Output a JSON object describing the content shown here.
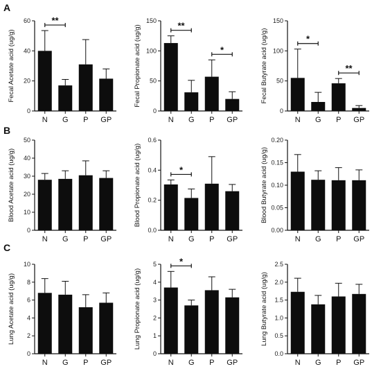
{
  "panels": [
    "A",
    "B",
    "C"
  ],
  "chart_data": [
    {
      "type": "bar",
      "panel": "A",
      "ylabel": "Fecal Acetate acid (ug/g)",
      "categories": [
        "N",
        "G",
        "P",
        "GP"
      ],
      "values": [
        40,
        17,
        31,
        21.5
      ],
      "errors": [
        13.5,
        4,
        16.5,
        6.5
      ],
      "ylim": [
        0,
        60
      ],
      "yticks": [
        "0",
        "20",
        "40",
        "60"
      ],
      "significance": [
        {
          "from": "N",
          "to": "G",
          "label": "**"
        }
      ]
    },
    {
      "type": "bar",
      "panel": "A",
      "ylabel": "Fecal Propionate acid (ug/g)",
      "categories": [
        "N",
        "G",
        "P",
        "GP"
      ],
      "values": [
        113,
        31,
        57,
        20
      ],
      "errors": [
        12,
        20,
        28,
        12
      ],
      "ylim": [
        0,
        150
      ],
      "yticks": [
        "0",
        "50",
        "100",
        "150"
      ],
      "significance": [
        {
          "from": "N",
          "to": "G",
          "label": "**"
        },
        {
          "from": "P",
          "to": "GP",
          "label": "*"
        }
      ]
    },
    {
      "type": "bar",
      "panel": "A",
      "ylabel": "Fecal Butyrate acid (ug/g)",
      "categories": [
        "N",
        "G",
        "P",
        "GP"
      ],
      "values": [
        55,
        15,
        46,
        5
      ],
      "errors": [
        48,
        16,
        8,
        4
      ],
      "ylim": [
        0,
        150
      ],
      "yticks": [
        "0",
        "50",
        "100",
        "150"
      ],
      "significance": [
        {
          "from": "N",
          "to": "G",
          "label": "*"
        },
        {
          "from": "P",
          "to": "GP",
          "label": "**"
        }
      ]
    },
    {
      "type": "bar",
      "panel": "B",
      "ylabel": "Blood Acetate acid (ug/g)",
      "categories": [
        "N",
        "G",
        "P",
        "GP"
      ],
      "values": [
        28,
        28.5,
        30.5,
        29
      ],
      "errors": [
        3.5,
        4.5,
        8,
        4
      ],
      "ylim": [
        0,
        50
      ],
      "yticks": [
        "0",
        "10",
        "20",
        "30",
        "40",
        "50"
      ],
      "significance": []
    },
    {
      "type": "bar",
      "panel": "B",
      "ylabel": "Blood Propionate acid (ug/g)",
      "categories": [
        "N",
        "G",
        "P",
        "GP"
      ],
      "values": [
        0.305,
        0.215,
        0.31,
        0.26
      ],
      "errors": [
        0.03,
        0.06,
        0.18,
        0.045
      ],
      "ylim": [
        0,
        0.6
      ],
      "yticks": [
        "0.0",
        "0.2",
        "0.4",
        "0.6"
      ],
      "significance": [
        {
          "from": "N",
          "to": "G",
          "label": "*"
        }
      ]
    },
    {
      "type": "bar",
      "panel": "B",
      "ylabel": "Blood Butyrate acid (ug/g)",
      "categories": [
        "N",
        "G",
        "P",
        "GP"
      ],
      "values": [
        0.13,
        0.112,
        0.111,
        0.111
      ],
      "errors": [
        0.038,
        0.02,
        0.028,
        0.023
      ],
      "ylim": [
        0,
        0.2
      ],
      "yticks": [
        "0.00",
        "0.05",
        "0.10",
        "0.15",
        "0.20"
      ],
      "significance": []
    },
    {
      "type": "bar",
      "panel": "C",
      "ylabel": "Lung Acetate acid (ug/g)",
      "categories": [
        "N",
        "G",
        "P",
        "GP"
      ],
      "values": [
        6.8,
        6.6,
        5.2,
        5.7
      ],
      "errors": [
        1.6,
        1.5,
        1.4,
        1.1
      ],
      "ylim": [
        0,
        10
      ],
      "yticks": [
        "0",
        "2",
        "4",
        "6",
        "8",
        "10"
      ],
      "significance": []
    },
    {
      "type": "bar",
      "panel": "C",
      "ylabel": "Lung Propionate acid (ug/g)",
      "categories": [
        "N",
        "G",
        "P",
        "GP"
      ],
      "values": [
        3.7,
        2.7,
        3.55,
        3.15
      ],
      "errors": [
        0.9,
        0.3,
        0.75,
        0.45
      ],
      "ylim": [
        0,
        5
      ],
      "yticks": [
        "0",
        "1",
        "2",
        "3",
        "4",
        "5"
      ],
      "significance": [
        {
          "from": "N",
          "to": "G",
          "label": "*"
        }
      ]
    },
    {
      "type": "bar",
      "panel": "C",
      "ylabel": "Lung Butyrate acid (ug/g)",
      "categories": [
        "N",
        "G",
        "P",
        "GP"
      ],
      "values": [
        1.73,
        1.38,
        1.6,
        1.67
      ],
      "errors": [
        0.38,
        0.25,
        0.37,
        0.27
      ],
      "ylim": [
        0,
        2.5
      ],
      "yticks": [
        "0.0",
        "0.5",
        "1.0",
        "1.5",
        "2.0",
        "2.5"
      ],
      "significance": []
    }
  ]
}
